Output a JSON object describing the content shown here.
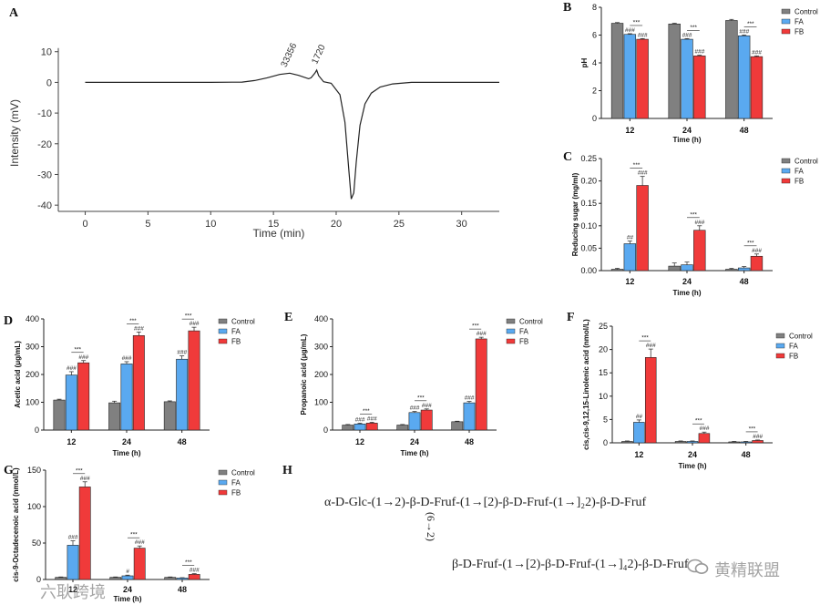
{
  "chart_data": [
    {
      "id": "A",
      "panel_label": "A",
      "type": "line",
      "title": "",
      "xlabel": "Time (min)",
      "ylabel": "Intensity (mV)",
      "xlim": [
        -2,
        33
      ],
      "ylim": [
        -45,
        12
      ],
      "xticks": [
        0,
        5,
        10,
        15,
        20,
        25,
        30
      ],
      "yticks": [
        10,
        0,
        -10,
        -20,
        -30,
        -40
      ],
      "series": [
        {
          "name": "chromatogram",
          "x": [
            0,
            5,
            10,
            12.5,
            13.5,
            14.5,
            15.5,
            16.3,
            17.0,
            17.8,
            18.0,
            18.3,
            18.45,
            18.6,
            19.0,
            19.6,
            20.3,
            20.7,
            21.0,
            21.2,
            21.4,
            21.6,
            21.9,
            22.3,
            22.8,
            23.5,
            24.5,
            26,
            28,
            33
          ],
          "y": [
            0,
            0,
            0,
            0.1,
            0.6,
            1.5,
            2.6,
            3.0,
            2.3,
            1.2,
            1.5,
            3.0,
            4.0,
            2.2,
            0.2,
            -0.3,
            -4,
            -13,
            -28,
            -38,
            -36,
            -26,
            -14,
            -7,
            -3.5,
            -1.5,
            -0.5,
            0,
            0,
            0
          ]
        }
      ],
      "annotations": [
        {
          "text": "33356",
          "x": 16.0,
          "y": 3.0
        },
        {
          "text": "1720",
          "x": 18.45,
          "y": 4.0
        }
      ]
    },
    {
      "id": "B",
      "panel_label": "B",
      "type": "bar",
      "xlabel": "Time (h)",
      "ylabel": "pH",
      "categories": [
        "12",
        "24",
        "48"
      ],
      "ylim": [
        0,
        8
      ],
      "yticks": [
        0,
        2,
        4,
        6,
        8
      ],
      "legend": [
        "Control",
        "FA",
        "FB"
      ],
      "series": [
        {
          "name": "Control",
          "values": [
            6.85,
            6.8,
            7.05
          ],
          "err": [
            0.05,
            0.05,
            0.08
          ]
        },
        {
          "name": "FA",
          "values": [
            6.05,
            5.7,
            5.95
          ],
          "err": [
            0.05,
            0.05,
            0.06
          ]
        },
        {
          "name": "FB",
          "values": [
            5.7,
            4.5,
            4.45
          ],
          "err": [
            0.05,
            0.05,
            0.05
          ]
        }
      ],
      "sig": {
        "fa": [
          "###",
          "###",
          "###"
        ],
        "fb": [
          "###",
          "###",
          "###"
        ],
        "pair": [
          "***",
          "***",
          "***"
        ]
      }
    },
    {
      "id": "C",
      "panel_label": "C",
      "type": "bar",
      "xlabel": "Time (h)",
      "ylabel": "Reducing sugar (mg/ml)",
      "categories": [
        "12",
        "24",
        "48"
      ],
      "ylim": [
        0,
        0.25
      ],
      "yticks": [
        0,
        0.05,
        0.1,
        0.15,
        0.2,
        0.25
      ],
      "ytick_labels": [
        "0.00",
        "0.05",
        "0.10",
        "0.15",
        "0.20",
        "0.25"
      ],
      "legend": [
        "Control",
        "FA",
        "FB"
      ],
      "series": [
        {
          "name": "Control",
          "values": [
            0.003,
            0.01,
            0.003
          ],
          "err": [
            0.002,
            0.007,
            0.002
          ]
        },
        {
          "name": "FA",
          "values": [
            0.06,
            0.013,
            0.006
          ],
          "err": [
            0.006,
            0.006,
            0.003
          ]
        },
        {
          "name": "FB",
          "values": [
            0.19,
            0.09,
            0.032
          ],
          "err": [
            0.02,
            0.01,
            0.005
          ]
        }
      ],
      "sig": {
        "fa": [
          "##",
          "",
          ""
        ],
        "fb": [
          "###",
          "###",
          "###"
        ],
        "pair": [
          "***",
          "***",
          "***"
        ]
      }
    },
    {
      "id": "D",
      "panel_label": "D",
      "type": "bar",
      "xlabel": "Time (h)",
      "ylabel": "Acetic acid (μg/mL)",
      "categories": [
        "12",
        "24",
        "48"
      ],
      "ylim": [
        0,
        400
      ],
      "yticks": [
        0,
        100,
        200,
        300,
        400
      ],
      "legend": [
        "Control",
        "FA",
        "FB"
      ],
      "series": [
        {
          "name": "Control",
          "values": [
            108,
            98,
            102
          ],
          "err": [
            3,
            6,
            3
          ]
        },
        {
          "name": "FA",
          "values": [
            198,
            238,
            255
          ],
          "err": [
            12,
            8,
            12
          ]
        },
        {
          "name": "FB",
          "values": [
            242,
            340,
            357
          ],
          "err": [
            8,
            13,
            13
          ]
        }
      ],
      "sig": {
        "fa": [
          "###",
          "###",
          "###"
        ],
        "fb": [
          "###",
          "###",
          "###"
        ],
        "pair": [
          "***",
          "***",
          "***"
        ]
      }
    },
    {
      "id": "E",
      "panel_label": "E",
      "type": "bar",
      "xlabel": "Time (h)",
      "ylabel": "Propanoic acid (μg/mL)",
      "categories": [
        "12",
        "24",
        "48"
      ],
      "ylim": [
        0,
        400
      ],
      "yticks": [
        0,
        100,
        200,
        300,
        400
      ],
      "legend": [
        "Control",
        "FA",
        "FB"
      ],
      "series": [
        {
          "name": "Control",
          "values": [
            18,
            18,
            30
          ],
          "err": [
            2,
            2,
            2
          ]
        },
        {
          "name": "FA",
          "values": [
            22,
            63,
            98
          ],
          "err": [
            3,
            4,
            5
          ]
        },
        {
          "name": "FB",
          "values": [
            25,
            72,
            328
          ],
          "err": [
            3,
            4,
            6
          ]
        }
      ],
      "sig": {
        "fa": [
          "###",
          "###",
          "###"
        ],
        "fb": [
          "###",
          "###",
          "###"
        ],
        "pair": [
          "***",
          "***",
          "***"
        ]
      }
    },
    {
      "id": "F",
      "panel_label": "F",
      "type": "bar",
      "xlabel": "Time (h)",
      "ylabel": "cis,cis-9,12,15-Linolenic acid (nmol/L)",
      "categories": [
        "12",
        "24",
        "48"
      ],
      "ylim": [
        0,
        25
      ],
      "yticks": [
        0,
        5,
        10,
        15,
        20,
        25
      ],
      "legend": [
        "Control",
        "FA",
        "FB"
      ],
      "series": [
        {
          "name": "Control",
          "values": [
            0.3,
            0.3,
            0.2
          ],
          "err": [
            0.1,
            0.1,
            0.1
          ]
        },
        {
          "name": "FA",
          "values": [
            4.4,
            0.3,
            0.2
          ],
          "err": [
            0.5,
            0.1,
            0.1
          ]
        },
        {
          "name": "FB",
          "values": [
            18.3,
            2.0,
            0.5
          ],
          "err": [
            1.8,
            0.3,
            0.1
          ]
        }
      ],
      "sig": {
        "fa": [
          "##",
          "",
          ""
        ],
        "fb": [
          "###",
          "###",
          "###"
        ],
        "pair": [
          "***",
          "***",
          "***"
        ]
      }
    },
    {
      "id": "G",
      "panel_label": "G",
      "type": "bar",
      "xlabel": "Time (h)",
      "ylabel": "cis-9-Octadecenoic acid (nmol/L)",
      "categories": [
        "12",
        "24",
        "48"
      ],
      "ylim": [
        0,
        150
      ],
      "yticks": [
        0,
        50,
        100,
        150
      ],
      "legend": [
        "Control",
        "FA",
        "FB"
      ],
      "series": [
        {
          "name": "Control",
          "values": [
            3,
            3,
            3
          ],
          "err": [
            0.5,
            0.5,
            0.5
          ]
        },
        {
          "name": "FA",
          "values": [
            47,
            5,
            2
          ],
          "err": [
            6,
            1,
            0.5
          ]
        },
        {
          "name": "FB",
          "values": [
            127,
            43,
            7
          ],
          "err": [
            7,
            3,
            1
          ]
        }
      ],
      "sig": {
        "fa": [
          "###",
          "#",
          ""
        ],
        "fb": [
          "###",
          "###",
          "###"
        ],
        "pair": [
          "***",
          "***",
          "***"
        ]
      }
    }
  ],
  "colors": {
    "Control": "#808080",
    "FA": "#5aa9f0",
    "FB": "#f03a3a",
    "edge": "#222222",
    "line": "#222222"
  },
  "structure": {
    "panel_label": "H",
    "line1": "α-D-Glc-(1→2)-β-D-Fruf-(1→[2)-β-D-Fruf-(1→]₂2)-β-D-Fruf",
    "link": "(6→2)",
    "line2": "β-D-Fruf-(1→[2)-β-D-Fruf-(1→]₄2)-β-D-Fruf"
  },
  "watermarks": {
    "left": "六耿跨境",
    "right": "黄精联盟"
  }
}
